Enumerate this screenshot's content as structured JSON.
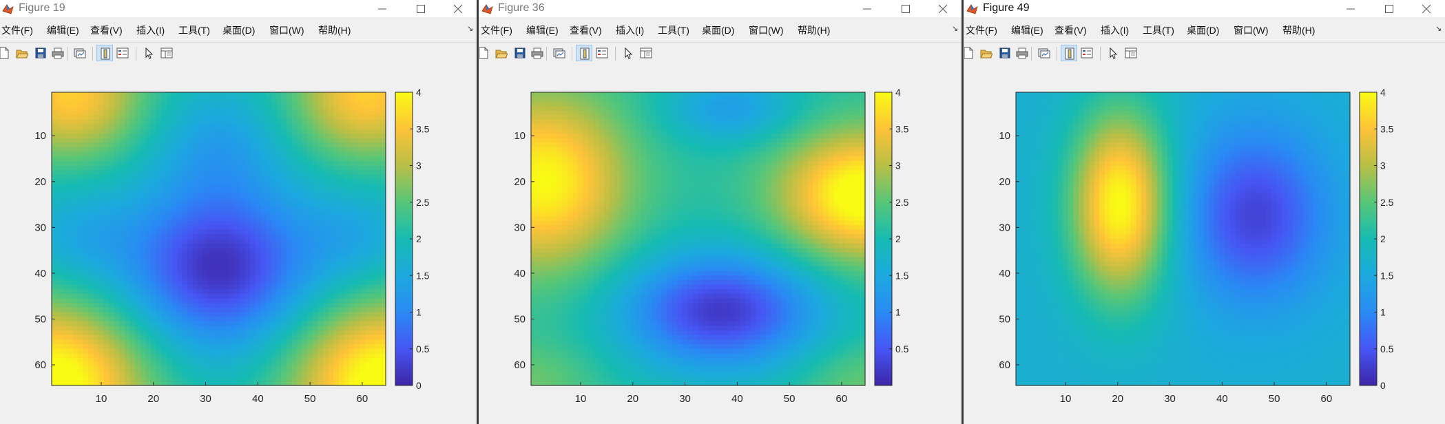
{
  "menu_labels": [
    "文件(F)",
    "编辑(E)",
    "查看(V)",
    "插入(I)",
    "工具(T)",
    "桌面(D)",
    "窗口(W)",
    "帮助(H)"
  ],
  "menu_arrow": "↘",
  "toolbar_icons": [
    "new-figure-icon",
    "open-file-icon",
    "save-icon",
    "print-icon",
    "link-plot-icon",
    "insert-colorbar-icon",
    "insert-legend-icon",
    "edit-plot-arrow-icon",
    "property-inspector-icon"
  ],
  "colormap": "parula",
  "windows": [
    {
      "title": "Figure 19",
      "active": false,
      "chart_data": {
        "type": "heatmap",
        "grid_size": [
          64,
          64
        ],
        "xticks": [
          10,
          20,
          30,
          40,
          50,
          60
        ],
        "yticks": [
          10,
          20,
          30,
          40,
          50,
          60
        ],
        "colorbar_ticks": [
          "4",
          "3.5",
          "3",
          "2.5",
          "2",
          "1.5",
          "1",
          "0.5",
          "0"
        ],
        "clim": [
          0,
          4
        ],
        "features": [
          {
            "row": 63,
            "col": 1,
            "value": 4.0
          },
          {
            "row": 63,
            "col": 63,
            "value": 4.0
          },
          {
            "row": 1,
            "col": 2,
            "value": 3.5
          },
          {
            "row": 1,
            "col": 62,
            "value": 3.5
          },
          {
            "row": 38,
            "col": 32,
            "value": 0.3
          },
          {
            "row": 12,
            "col": 32,
            "value": 1.4
          },
          {
            "row": 32,
            "col": 5,
            "value": 1.6
          }
        ]
      }
    },
    {
      "title": "Figure 36",
      "active": false,
      "chart_data": {
        "type": "heatmap",
        "grid_size": [
          64,
          64
        ],
        "xticks": [
          10,
          20,
          30,
          40,
          50,
          60
        ],
        "yticks": [
          10,
          20,
          30,
          40,
          50,
          60
        ],
        "colorbar_ticks": [
          "4",
          "3.5",
          "3",
          "2.5",
          "2",
          "1.5",
          "1",
          "0.5"
        ],
        "clim": [
          0,
          4
        ],
        "features": [
          {
            "row": 20,
            "col": 3,
            "value": 3.9
          },
          {
            "row": 22,
            "col": 62,
            "value": 4.0
          },
          {
            "row": 48,
            "col": 36,
            "value": 0.3
          },
          {
            "row": 5,
            "col": 40,
            "value": 1.5
          },
          {
            "row": 60,
            "col": 5,
            "value": 2.2
          },
          {
            "row": 62,
            "col": 62,
            "value": 2.5
          },
          {
            "row": 38,
            "col": 8,
            "value": 1.8
          }
        ]
      }
    },
    {
      "title": "Figure 49",
      "active": true,
      "chart_data": {
        "type": "heatmap",
        "grid_size": [
          64,
          64
        ],
        "xticks": [
          10,
          20,
          30,
          40,
          50,
          60
        ],
        "yticks": [
          10,
          20,
          30,
          40,
          50,
          60
        ],
        "colorbar_ticks": [
          "4",
          "3.5",
          "3",
          "2.5",
          "2",
          "1.5",
          "1",
          "0.5",
          "0"
        ],
        "clim": [
          0,
          4
        ],
        "features": [
          {
            "row": 22,
            "col": 21,
            "value": 4.0
          },
          {
            "row": 30,
            "col": 46,
            "value": 0.4
          },
          {
            "row": 55,
            "col": 32,
            "value": 1.5
          },
          {
            "row": 5,
            "col": 5,
            "value": 1.6
          },
          {
            "row": 60,
            "col": 60,
            "value": 1.5
          }
        ]
      }
    }
  ]
}
